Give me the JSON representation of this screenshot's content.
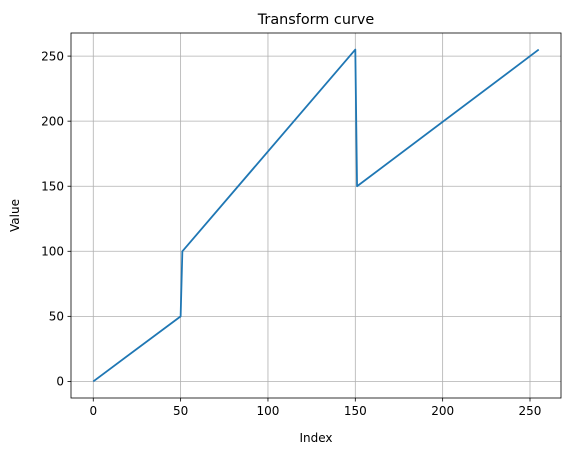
{
  "chart_data": {
    "type": "line",
    "title": "Transform curve",
    "xlabel": "Index",
    "ylabel": "Value",
    "xlim": [
      -12.75,
      267.75
    ],
    "ylim": [
      -12.75,
      267.75
    ],
    "xticks": [
      0,
      50,
      100,
      150,
      200,
      250
    ],
    "yticks": [
      0,
      50,
      100,
      150,
      200,
      250
    ],
    "grid": true,
    "legend": "none",
    "series": [
      {
        "color": "#1f77b4",
        "points": [
          [
            0,
            0
          ],
          [
            50,
            50
          ],
          [
            51,
            100
          ],
          [
            150,
            255
          ],
          [
            151,
            150
          ],
          [
            255,
            255
          ]
        ]
      }
    ]
  }
}
